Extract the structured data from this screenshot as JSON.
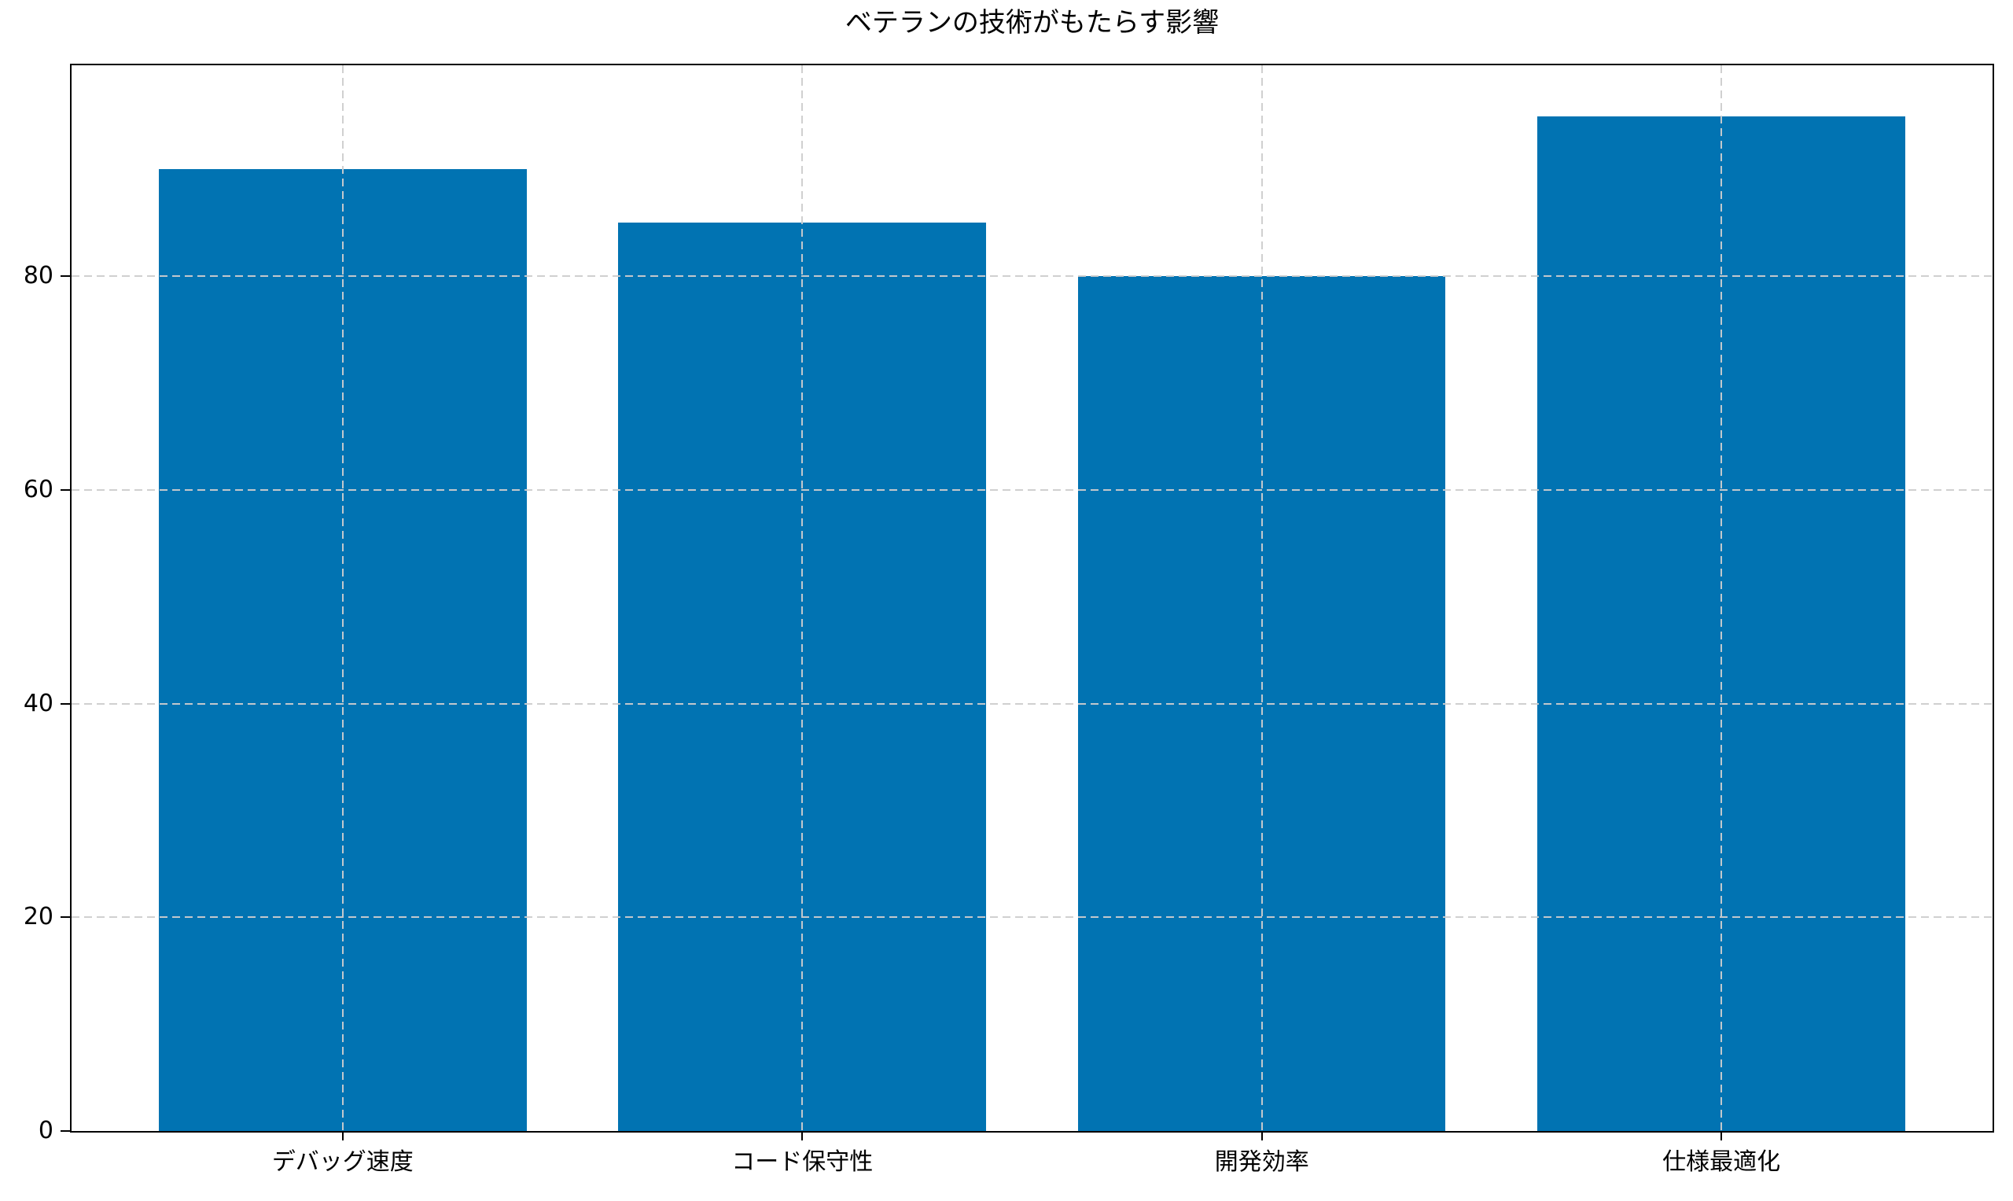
{
  "chart_data": {
    "type": "bar",
    "title": "ベテランの技術がもたらす影響",
    "categories": [
      "デバッグ速度",
      "コード保守性",
      "開発効率",
      "仕様最適化"
    ],
    "values": [
      90,
      85,
      80,
      95
    ],
    "xlabel": "",
    "ylabel": "",
    "yticks": [
      0,
      20,
      40,
      60,
      80
    ],
    "ylim": [
      0,
      99.75
    ],
    "bar_width_fraction": 0.8,
    "x_margin_fraction": 0.05,
    "grid": "dashed, horizontal and vertical, drawn over bars",
    "legend_position": "none",
    "styles": {
      "bar_color": "#0173b2",
      "grid_color": "#cdcdcd",
      "axis_color": "#000000",
      "background_color": "#ffffff",
      "text_color": "#000000"
    }
  }
}
